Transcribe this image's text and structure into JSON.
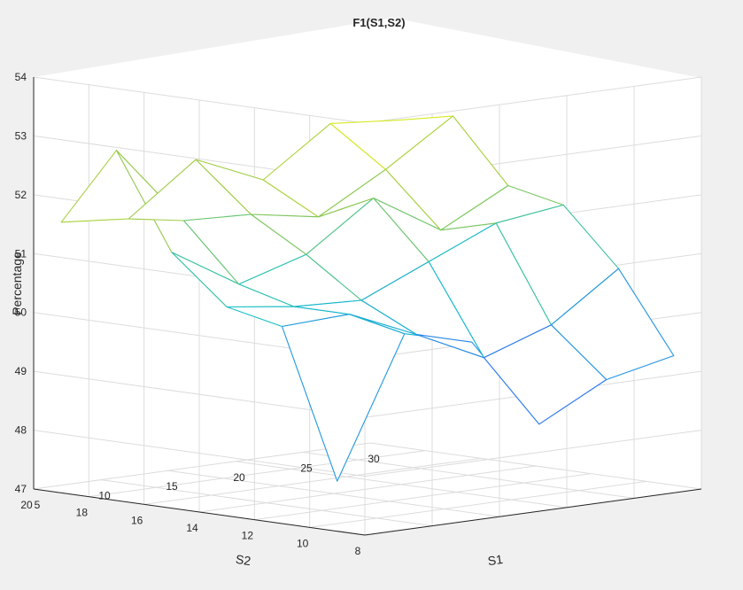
{
  "chart_data": {
    "type": "mesh3d",
    "title": "F1(S1,S2)",
    "xlabel": "S1",
    "ylabel": "S2",
    "zlabel": "Percentage",
    "x_ticks": [
      "5",
      "10",
      "15",
      "20",
      "25",
      "30"
    ],
    "y_ticks": [
      "8",
      "10",
      "12",
      "14",
      "16",
      "18",
      "20"
    ],
    "z_ticks": [
      "47",
      "48",
      "49",
      "50",
      "51",
      "52",
      "53",
      "54"
    ],
    "xlim": [
      5,
      30
    ],
    "ylim": [
      8,
      20
    ],
    "zlim": [
      47,
      54
    ],
    "grid": true,
    "colormap": "parula",
    "x": [
      5,
      10,
      15,
      20,
      25,
      30
    ],
    "y": [
      9,
      11,
      13,
      15,
      17,
      19
    ],
    "z": [
      [
        47.85,
        50.2,
        49.9,
        48.35,
        48.95,
        49.2
      ],
      [
        50.35,
        50.4,
        49.9,
        49.35,
        49.75,
        50.55
      ],
      [
        50.55,
        50.4,
        50.35,
        50.85,
        51.35,
        51.5
      ],
      [
        51.35,
        50.65,
        51.0,
        51.8,
        51.1,
        51.7
      ],
      [
        52.95,
        51.6,
        51.55,
        51.35,
        52.0,
        52.75
      ],
      [
        51.6,
        51.5,
        52.35,
        51.85,
        52.65,
        52.55
      ]
    ],
    "colors": {
      "background": "#f0f0f0",
      "pane": "#ffffff",
      "grid": "#dcdcdc",
      "axis": "#262626"
    }
  }
}
